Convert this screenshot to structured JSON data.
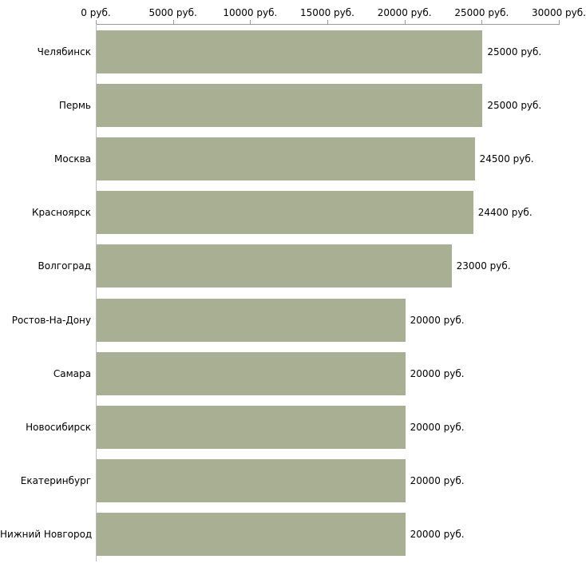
{
  "chart_data": {
    "type": "bar",
    "orientation": "horizontal",
    "title": "",
    "xlabel": "",
    "ylabel": "",
    "categories": [
      "Челябинск",
      "Пермь",
      "Москва",
      "Красноярск",
      "Волгоград",
      "Ростов-На-Дону",
      "Самара",
      "Новосибирск",
      "Екатеринбург",
      "Нижний Новгород"
    ],
    "values": [
      25000,
      25000,
      24500,
      24400,
      23000,
      20000,
      20000,
      20000,
      20000,
      20000
    ],
    "value_labels": [
      "25000 руб.",
      "25000 руб.",
      "24500 руб.",
      "24400 руб.",
      "23000 руб.",
      "20000 руб.",
      "20000 руб.",
      "20000 руб.",
      "20000 руб.",
      "20000 руб."
    ],
    "x_ticks": [
      0,
      5000,
      10000,
      15000,
      20000,
      25000,
      30000
    ],
    "x_tick_labels": [
      "0 руб.",
      "5000 руб.",
      "10000 руб.",
      "15000 руб.",
      "20000 руб.",
      "25000 руб.",
      "30000 руб."
    ],
    "xlim": [
      0,
      30000
    ],
    "grid": false,
    "legend": false,
    "axis_position": "top",
    "colors": {
      "bar": "#a9af93",
      "axis": "#999999",
      "text": "#000000",
      "background": "#ffffff"
    }
  }
}
